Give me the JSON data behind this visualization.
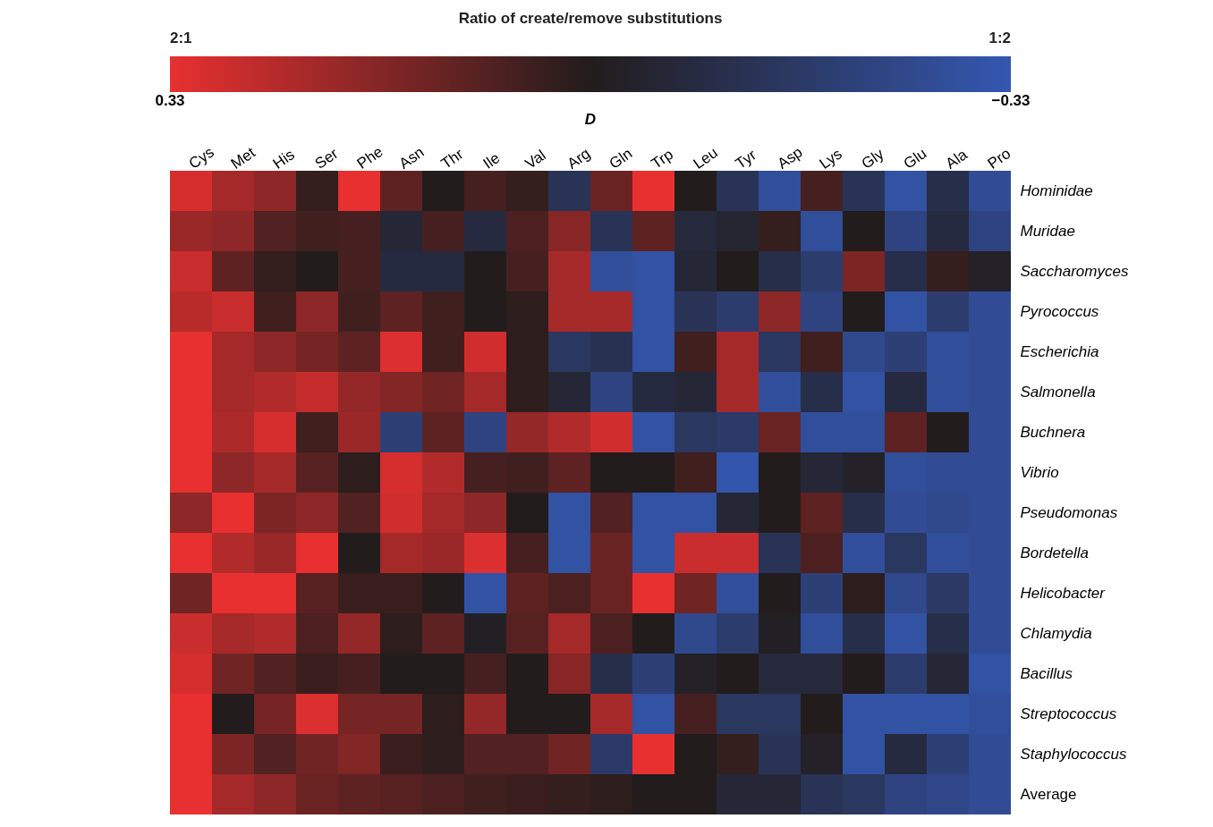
{
  "chart_data": {
    "type": "heatmap",
    "title": "Ratio of create/remove substitutions",
    "clabel": "D",
    "annotations": [
      "2:1",
      "1:2"
    ],
    "categories": [
      "Cys",
      "Met",
      "His",
      "Ser",
      "Phe",
      "Asn",
      "Thr",
      "Ile",
      "Val",
      "Arg",
      "Gln",
      "Trp",
      "Leu",
      "Tyr",
      "Asp",
      "Lys",
      "Gly",
      "Glu",
      "Ala",
      "Pro"
    ],
    "y_categories": [
      "Hominidae",
      "Muridae",
      "Saccharomyces",
      "Pyrococcus",
      "Escherichia",
      "Salmonella",
      "Buchnera",
      "Vibrio",
      "Pseudomonas",
      "Bordetella",
      "Helicobacter",
      "Chlamydia",
      "Bacillus",
      "Streptococcus",
      "Staphylococcus",
      "Average"
    ],
    "cells": [
      [
        0.3,
        0.22,
        0.18,
        0.03,
        0.33,
        0.1,
        0,
        0.06,
        0.03,
        -0.13,
        0.12,
        0.33,
        0,
        -0.13,
        -0.28,
        0.06,
        -0.13,
        -0.3,
        -0.1,
        -0.27
      ],
      [
        0.2,
        0.18,
        0.08,
        0.05,
        0.06,
        -0.06,
        0.06,
        -0.08,
        0.07,
        0.17,
        -0.13,
        0.1,
        -0.07,
        -0.05,
        0.03,
        -0.28,
        0,
        -0.22,
        -0.08,
        -0.22
      ],
      [
        0.28,
        0.1,
        0.03,
        0,
        0.06,
        -0.08,
        -0.08,
        0,
        0.06,
        0.22,
        -0.28,
        -0.3,
        -0.06,
        0,
        -0.1,
        -0.18,
        0.15,
        -0.1,
        0.03,
        -0.03
      ],
      [
        0.25,
        0.28,
        0.05,
        0.18,
        0.05,
        0.1,
        0.05,
        0,
        0.02,
        0.22,
        0.22,
        -0.3,
        -0.13,
        -0.18,
        0.18,
        -0.22,
        0,
        -0.3,
        -0.18,
        -0.27
      ],
      [
        0.33,
        0.22,
        0.18,
        0.14,
        0.1,
        0.31,
        0.05,
        0.29,
        0.02,
        -0.15,
        -0.12,
        -0.3,
        0.05,
        0.22,
        -0.15,
        0.05,
        -0.25,
        -0.2,
        -0.28,
        -0.27
      ],
      [
        0.33,
        0.22,
        0.24,
        0.27,
        0.19,
        0.16,
        0.13,
        0.22,
        0.02,
        -0.06,
        -0.22,
        -0.08,
        -0.06,
        0.22,
        -0.28,
        -0.1,
        -0.3,
        -0.08,
        -0.28,
        -0.27
      ],
      [
        0.33,
        0.23,
        0.3,
        0.05,
        0.2,
        -0.2,
        0.1,
        -0.22,
        0.19,
        0.24,
        0.29,
        -0.3,
        -0.15,
        -0.17,
        0.12,
        -0.28,
        -0.28,
        0.1,
        0,
        -0.27
      ],
      [
        0.33,
        0.18,
        0.22,
        0.09,
        0.02,
        0.3,
        0.24,
        0.06,
        0.05,
        0.1,
        0,
        0,
        0.05,
        -0.32,
        0,
        -0.06,
        -0.03,
        -0.28,
        -0.27,
        -0.27
      ],
      [
        0.18,
        0.33,
        0.15,
        0.18,
        0.08,
        0.29,
        0.22,
        0.18,
        0,
        -0.3,
        0.08,
        -0.3,
        -0.3,
        -0.06,
        0,
        0.1,
        -0.1,
        -0.27,
        -0.25,
        -0.27
      ],
      [
        0.33,
        0.24,
        0.2,
        0.33,
        0,
        0.22,
        0.2,
        0.31,
        0.06,
        -0.3,
        0.12,
        -0.3,
        0.28,
        0.28,
        -0.13,
        0.07,
        -0.28,
        -0.15,
        -0.28,
        -0.27
      ],
      [
        0.13,
        0.33,
        0.33,
        0.09,
        0.04,
        0.04,
        0,
        -0.3,
        0.1,
        0.07,
        0.12,
        0.33,
        0.13,
        -0.28,
        0,
        -0.2,
        0.02,
        -0.25,
        -0.16,
        -0.27
      ],
      [
        0.28,
        0.22,
        0.24,
        0.07,
        0.19,
        0.02,
        0.1,
        -0.02,
        0.09,
        0.22,
        0.07,
        0,
        -0.25,
        -0.18,
        -0.02,
        -0.28,
        -0.1,
        -0.3,
        -0.1,
        -0.27
      ],
      [
        0.3,
        0.13,
        0.08,
        0.04,
        0.06,
        0,
        0,
        0.06,
        0,
        0.17,
        -0.1,
        -0.2,
        -0.03,
        0,
        -0.07,
        -0.07,
        0,
        -0.18,
        -0.06,
        -0.3
      ],
      [
        0.33,
        0,
        0.14,
        0.31,
        0.14,
        0.14,
        0.02,
        0.19,
        0,
        0,
        0.22,
        -0.3,
        0.06,
        -0.15,
        -0.15,
        0,
        -0.3,
        -0.3,
        -0.3,
        -0.28
      ],
      [
        0.33,
        0.15,
        0.08,
        0.13,
        0.16,
        0.04,
        0.02,
        0.08,
        0.08,
        0.13,
        -0.17,
        0.33,
        0,
        0.03,
        -0.13,
        -0.03,
        -0.3,
        -0.08,
        -0.2,
        -0.27
      ],
      [
        0.33,
        0.22,
        0.18,
        0.12,
        0.1,
        0.09,
        0.07,
        0.05,
        0.04,
        0.03,
        0.02,
        0,
        0,
        -0.06,
        -0.06,
        -0.13,
        -0.15,
        -0.22,
        -0.24,
        -0.27
      ]
    ],
    "clim": [
      0.33,
      -0.33
    ],
    "cticks": [
      {
        "value": 0.33,
        "label": "0.33"
      },
      {
        "value": -0.33,
        "label": "−0.33"
      }
    ]
  }
}
